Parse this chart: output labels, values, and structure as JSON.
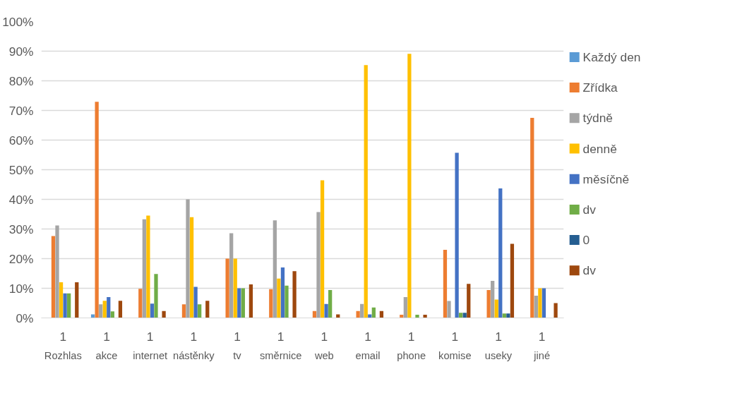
{
  "chart_data": {
    "type": "bar",
    "categories": [
      "1\nRozhlas",
      "1\nakce",
      "1\ninternet",
      "1\nnástěnky",
      "1\ntv",
      "1\nsměrnice",
      "1\nweb",
      "1\nemail",
      "1\nphone",
      "1\nkomise",
      "1\nuseky",
      "1\njiné"
    ],
    "series": [
      {
        "name": "Každý den",
        "color": "#5b9bd5",
        "values": [
          null,
          1.2,
          null,
          null,
          null,
          null,
          null,
          null,
          null,
          null,
          null,
          null
        ]
      },
      {
        "name": "Zřídka",
        "color": "#ed7d31",
        "values": [
          27.6,
          72.9,
          9.8,
          4.6,
          20,
          9.7,
          2.3,
          2.3,
          1.1,
          23,
          9.4,
          67.5
        ]
      },
      {
        "name": "týdně",
        "color": "#a5a5a5",
        "values": [
          31.2,
          4.6,
          33.3,
          40,
          28.6,
          32.9,
          35.7,
          4.7,
          7,
          5.7,
          12.5,
          7.5
        ]
      },
      {
        "name": "denně",
        "color": "#ffc000",
        "values": [
          12,
          5.8,
          34.5,
          34,
          20,
          13.3,
          46.4,
          85.3,
          89.1,
          null,
          6.2,
          10
        ]
      },
      {
        "name": "měsíčně",
        "color": "#4472c4",
        "values": [
          8.3,
          7,
          4.8,
          10.5,
          10,
          17,
          4.7,
          1.2,
          null,
          55.7,
          43.7,
          10
        ]
      },
      {
        "name": "dv",
        "color": "#70ad47",
        "values": [
          8.3,
          2.2,
          14.8,
          4.6,
          10,
          10.9,
          9.4,
          3.5,
          1.1,
          1.7,
          1.5,
          null
        ]
      },
      {
        "name": "0",
        "color": "#255e91",
        "values": [
          null,
          null,
          null,
          null,
          null,
          null,
          null,
          null,
          null,
          1.7,
          1.5,
          null
        ]
      },
      {
        "name": "dv",
        "color": "#9e480e",
        "values": [
          12,
          5.8,
          2.3,
          5.8,
          11.3,
          15.8,
          1.2,
          2.3,
          1.1,
          11.5,
          25,
          5
        ]
      }
    ],
    "ylim": [
      0,
      100
    ],
    "yticks": [
      {
        "value": 0,
        "label": "0%"
      },
      {
        "value": 10,
        "label": "10%"
      },
      {
        "value": 20,
        "label": "20%"
      },
      {
        "value": 30,
        "label": "30%"
      },
      {
        "value": 40,
        "label": "40%"
      },
      {
        "value": 50,
        "label": "50%"
      },
      {
        "value": 60,
        "label": "60%"
      },
      {
        "value": 70,
        "label": "70%"
      },
      {
        "value": 80,
        "label": "80%"
      },
      {
        "value": 90,
        "label": "90%"
      },
      {
        "value": 100,
        "label": "100%"
      }
    ],
    "grid": "y",
    "legend": "right"
  }
}
